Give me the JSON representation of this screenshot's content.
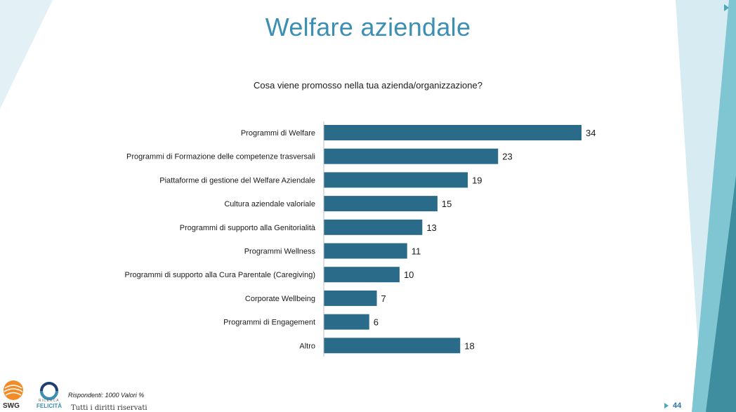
{
  "slide": {
    "title": "Welfare aziendale",
    "question": "Cosa viene promosso nella tua azienda/organizzazione?",
    "footnote": "Rispondenti: 1000 Valori %",
    "rights": "Tutti i diritti riservati",
    "page_number": "44",
    "logos": {
      "swg_text": "SWG",
      "rf_sub": "RICERCA",
      "rf_text": "FELICITÀ"
    }
  },
  "colors": {
    "title": "#3a8fb3",
    "bar": "#2a6b8a",
    "accent_light": "#d6ebf2",
    "accent_mid": "#7fc6d2",
    "accent_dark": "#3e8ea0"
  },
  "chart_data": {
    "type": "bar",
    "orientation": "horizontal",
    "title": "Cosa viene promosso nella tua azienda/organizzazione?",
    "categories": [
      "Programmi di Welfare",
      "Programmi di Formazione delle competenze trasversali",
      "Piattaforme di gestione del Welfare Aziendale",
      "Cultura aziendale valoriale",
      "Programmi di supporto alla Genitorialità",
      "Programmi Wellness",
      "Programmi di supporto alla Cura Parentale (Caregiving)",
      "Corporate Wellbeing",
      "Programmi di Engagement",
      "Altro"
    ],
    "values": [
      34,
      23,
      19,
      15,
      13,
      11,
      10,
      7,
      6,
      18
    ],
    "xlim": [
      0,
      34
    ],
    "grid": false,
    "legend": "none"
  }
}
